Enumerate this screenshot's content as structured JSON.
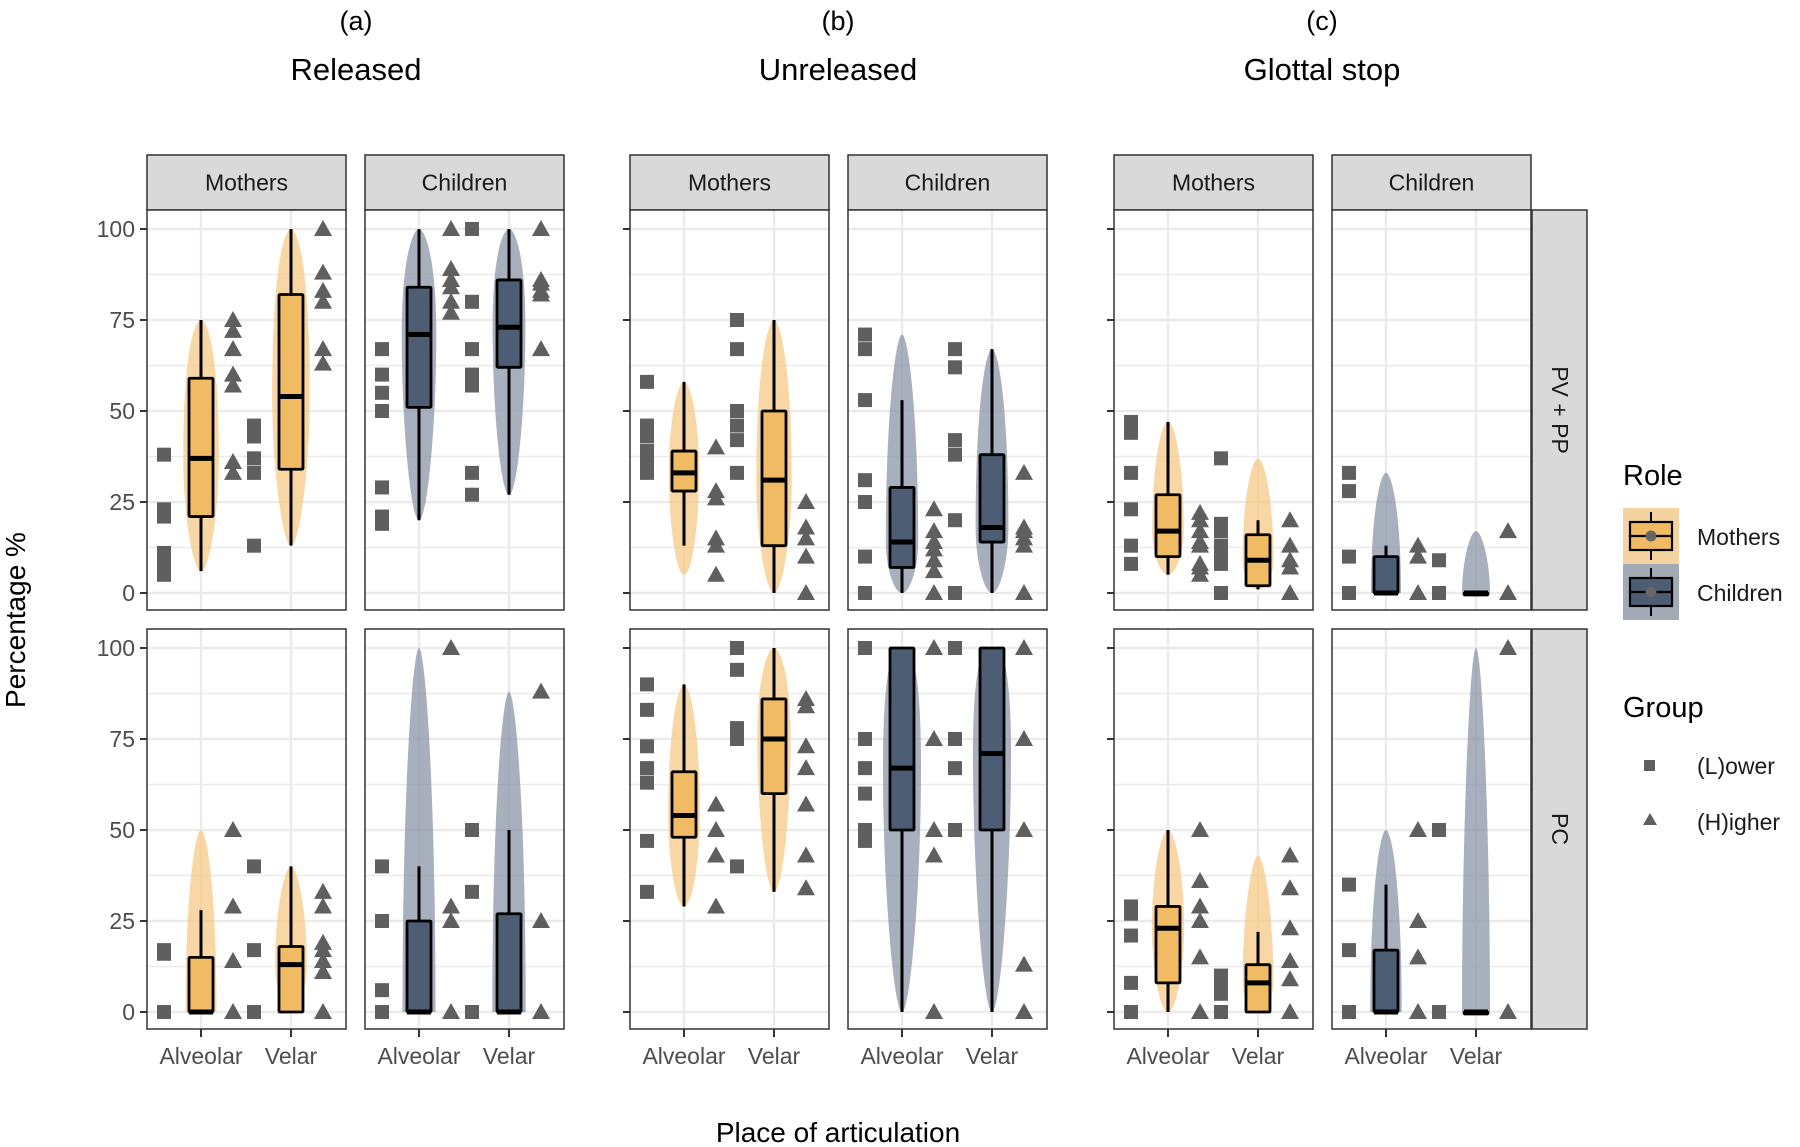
{
  "chart_data": {
    "type": "box-violin",
    "ylabel": "Percentage %",
    "xlabel": "Place of articulation",
    "ylim": [
      0,
      100
    ],
    "yticks": [
      0,
      25,
      50,
      75,
      100
    ],
    "grid": true,
    "legend_position": "right",
    "colors": {
      "Mothers": "#f0bb62",
      "Mothers_violin": "#f5c986",
      "Children": "#4d5d73",
      "Children_violin": "#8a95a6",
      "points": "#5f5f5f",
      "strip_bg": "#d9d9d9"
    },
    "columns": [
      {
        "label": "(a)",
        "title": "Released"
      },
      {
        "label": "(b)",
        "title": "Unreleased"
      },
      {
        "label": "(c)",
        "title": "Glottal stop"
      }
    ],
    "roles": [
      "Mothers",
      "Children"
    ],
    "rows": [
      "PV + PP",
      "PC"
    ],
    "categories": [
      "Alveolar",
      "Velar"
    ],
    "legend": {
      "role_title": "Role",
      "role_items": [
        "Mothers",
        "Children"
      ],
      "group_title": "Group",
      "group_items": [
        {
          "label": "(L)ower",
          "shape": "square"
        },
        {
          "label": "(H)igher",
          "shape": "triangle"
        }
      ]
    },
    "series": [
      {
        "column": "Released",
        "row": "PV + PP",
        "role": "Mothers",
        "place": "Alveolar",
        "box": {
          "min": 6,
          "q1": 21,
          "median": 37,
          "q3": 59,
          "max": 75
        },
        "violin": [
          6,
          75
        ],
        "lower": [
          5,
          8,
          11,
          21,
          23,
          38
        ],
        "higher": [
          33,
          36,
          57,
          60,
          67,
          72,
          75
        ]
      },
      {
        "column": "Released",
        "row": "PV + PP",
        "role": "Mothers",
        "place": "Velar",
        "box": {
          "min": 13,
          "q1": 34,
          "median": 54,
          "q3": 82,
          "max": 100
        },
        "violin": [
          13,
          100
        ],
        "lower": [
          13,
          33,
          37,
          43,
          46
        ],
        "higher": [
          63,
          67,
          80,
          83,
          88,
          100
        ]
      },
      {
        "column": "Released",
        "row": "PV + PP",
        "role": "Children",
        "place": "Alveolar",
        "box": {
          "min": 20,
          "q1": 51,
          "median": 71,
          "q3": 84,
          "max": 100
        },
        "violin": [
          20,
          100
        ],
        "lower": [
          19,
          21,
          29,
          50,
          55,
          60,
          67
        ],
        "higher": [
          77,
          80,
          84,
          86,
          89,
          100
        ]
      },
      {
        "column": "Released",
        "row": "PV + PP",
        "role": "Children",
        "place": "Velar",
        "box": {
          "min": 27,
          "q1": 62,
          "median": 73,
          "q3": 86,
          "max": 100
        },
        "violin": [
          27,
          100
        ],
        "lower": [
          27,
          33,
          57,
          60,
          67,
          80,
          100
        ],
        "higher": [
          67,
          82,
          83,
          85,
          86,
          100
        ]
      },
      {
        "column": "Released",
        "row": "PC",
        "role": "Mothers",
        "place": "Alveolar",
        "box": {
          "min": 0,
          "q1": 0,
          "median": 0,
          "q3": 15,
          "max": 28
        },
        "violin": [
          0,
          50
        ],
        "lower": [
          0,
          16,
          17
        ],
        "higher": [
          0,
          14,
          29,
          50
        ]
      },
      {
        "column": "Released",
        "row": "PC",
        "role": "Mothers",
        "place": "Velar",
        "box": {
          "min": 0,
          "q1": 0,
          "median": 13,
          "q3": 18,
          "max": 40
        },
        "violin": [
          0,
          40
        ],
        "lower": [
          0,
          17,
          40
        ],
        "higher": [
          0,
          11,
          14,
          17,
          19,
          29,
          33
        ]
      },
      {
        "column": "Released",
        "row": "PC",
        "role": "Children",
        "place": "Alveolar",
        "box": {
          "min": 0,
          "q1": 0,
          "median": 0,
          "q3": 25,
          "max": 40
        },
        "violin": [
          0,
          100
        ],
        "lower": [
          0,
          6,
          25,
          40
        ],
        "higher": [
          0,
          25,
          29,
          100
        ]
      },
      {
        "column": "Released",
        "row": "PC",
        "role": "Children",
        "place": "Velar",
        "box": {
          "min": 0,
          "q1": 0,
          "median": 0,
          "q3": 27,
          "max": 50
        },
        "violin": [
          0,
          88
        ],
        "lower": [
          0,
          33,
          50
        ],
        "higher": [
          0,
          25,
          88
        ]
      },
      {
        "column": "Unreleased",
        "row": "PV + PP",
        "role": "Mothers",
        "place": "Alveolar",
        "box": {
          "min": 13,
          "q1": 28,
          "median": 33,
          "q3": 39,
          "max": 58
        },
        "violin": [
          5,
          58
        ],
        "lower": [
          33,
          36,
          39,
          43,
          46,
          58
        ],
        "higher": [
          5,
          13,
          15,
          26,
          28,
          40
        ]
      },
      {
        "column": "Unreleased",
        "row": "PV + PP",
        "role": "Mothers",
        "place": "Velar",
        "box": {
          "min": 0,
          "q1": 13,
          "median": 31,
          "q3": 50,
          "max": 75
        },
        "violin": [
          0,
          75
        ],
        "lower": [
          33,
          42,
          46,
          50,
          67,
          75
        ],
        "higher": [
          0,
          10,
          15,
          18,
          25
        ]
      },
      {
        "column": "Unreleased",
        "row": "PV + PP",
        "role": "Children",
        "place": "Alveolar",
        "box": {
          "min": 0,
          "q1": 7,
          "median": 14,
          "q3": 29,
          "max": 53
        },
        "violin": [
          0,
          71
        ],
        "lower": [
          0,
          10,
          25,
          31,
          53,
          67,
          71
        ],
        "higher": [
          0,
          6,
          9,
          12,
          14,
          17,
          23
        ]
      },
      {
        "column": "Unreleased",
        "row": "PV + PP",
        "role": "Children",
        "place": "Velar",
        "box": {
          "min": 0,
          "q1": 14,
          "median": 18,
          "q3": 38,
          "max": 67
        },
        "violin": [
          0,
          67
        ],
        "lower": [
          0,
          20,
          38,
          42,
          62,
          67
        ],
        "higher": [
          0,
          13,
          15,
          17,
          18,
          33
        ]
      },
      {
        "column": "Unreleased",
        "row": "PC",
        "role": "Mothers",
        "place": "Alveolar",
        "box": {
          "min": 29,
          "q1": 48,
          "median": 54,
          "q3": 66,
          "max": 90
        },
        "violin": [
          29,
          90
        ],
        "lower": [
          33,
          47,
          63,
          67,
          73,
          83,
          90
        ],
        "higher": [
          29,
          43,
          50,
          57
        ]
      },
      {
        "column": "Unreleased",
        "row": "PC",
        "role": "Mothers",
        "place": "Velar",
        "box": {
          "min": 33,
          "q1": 60,
          "median": 75,
          "q3": 86,
          "max": 100
        },
        "violin": [
          33,
          100
        ],
        "lower": [
          40,
          75,
          78,
          94,
          100
        ],
        "higher": [
          34,
          43,
          57,
          67,
          73,
          84,
          86
        ]
      },
      {
        "column": "Unreleased",
        "row": "PC",
        "role": "Children",
        "place": "Alveolar",
        "box": {
          "min": 0,
          "q1": 50,
          "median": 67,
          "q3": 100,
          "max": 100
        },
        "violin": [
          0,
          100
        ],
        "lower": [
          47,
          50,
          60,
          67,
          75,
          100
        ],
        "higher": [
          0,
          43,
          50,
          75,
          100
        ]
      },
      {
        "column": "Unreleased",
        "row": "PC",
        "role": "Children",
        "place": "Velar",
        "box": {
          "min": 0,
          "q1": 50,
          "median": 71,
          "q3": 100,
          "max": 100
        },
        "violin": [
          0,
          100
        ],
        "lower": [
          50,
          67,
          75,
          100
        ],
        "higher": [
          0,
          13,
          50,
          75,
          100
        ]
      },
      {
        "column": "Glottal stop",
        "row": "PV + PP",
        "role": "Mothers",
        "place": "Alveolar",
        "box": {
          "min": 5,
          "q1": 10,
          "median": 17,
          "q3": 27,
          "max": 47
        },
        "violin": [
          5,
          47
        ],
        "lower": [
          8,
          13,
          23,
          33,
          44,
          47
        ],
        "higher": [
          5,
          7,
          8,
          13,
          14,
          17,
          20,
          22
        ]
      },
      {
        "column": "Glottal stop",
        "row": "PV + PP",
        "role": "Mothers",
        "place": "Velar",
        "box": {
          "min": 1,
          "q1": 2,
          "median": 9,
          "q3": 16,
          "max": 20
        },
        "violin": [
          1,
          37
        ],
        "lower": [
          0,
          8,
          10,
          13,
          17,
          19,
          37
        ],
        "higher": [
          0,
          7,
          9,
          13,
          20
        ]
      },
      {
        "column": "Glottal stop",
        "row": "PV + PP",
        "role": "Children",
        "place": "Alveolar",
        "box": {
          "min": 0,
          "q1": 0,
          "median": 0,
          "q3": 10,
          "max": 13
        },
        "violin": [
          0,
          33
        ],
        "lower": [
          0,
          10,
          28,
          33
        ],
        "higher": [
          0,
          10,
          13
        ]
      },
      {
        "column": "Glottal stop",
        "row": "PV + PP",
        "role": "Children",
        "place": "Velar",
        "box": {
          "min": 0,
          "q1": 0,
          "median": 0,
          "q3": 0,
          "max": 0
        },
        "violin": [
          0,
          17
        ],
        "lower": [
          0,
          9
        ],
        "higher": [
          0,
          17
        ]
      },
      {
        "column": "Glottal stop",
        "row": "PC",
        "role": "Mothers",
        "place": "Alveolar",
        "box": {
          "min": 0,
          "q1": 8,
          "median": 23,
          "q3": 29,
          "max": 50
        },
        "violin": [
          0,
          50
        ],
        "lower": [
          0,
          8,
          21,
          27,
          29
        ],
        "higher": [
          0,
          15,
          25,
          29,
          36,
          50
        ]
      },
      {
        "column": "Glottal stop",
        "row": "PC",
        "role": "Mothers",
        "place": "Velar",
        "box": {
          "min": 0,
          "q1": 0,
          "median": 8,
          "q3": 13,
          "max": 22
        },
        "violin": [
          0,
          43
        ],
        "lower": [
          0,
          5,
          8,
          10
        ],
        "higher": [
          0,
          9,
          14,
          23,
          34,
          43
        ]
      },
      {
        "column": "Glottal stop",
        "row": "PC",
        "role": "Children",
        "place": "Alveolar",
        "box": {
          "min": 0,
          "q1": 0,
          "median": 0,
          "q3": 17,
          "max": 35
        },
        "violin": [
          0,
          50
        ],
        "lower": [
          0,
          17,
          35
        ],
        "higher": [
          0,
          15,
          25,
          50
        ]
      },
      {
        "column": "Glottal stop",
        "row": "PC",
        "role": "Children",
        "place": "Velar",
        "box": {
          "min": 0,
          "q1": 0,
          "median": 0,
          "q3": 0,
          "max": 0
        },
        "violin": [
          0,
          100
        ],
        "lower": [
          0,
          50
        ],
        "higher": [
          0,
          100
        ]
      }
    ]
  }
}
